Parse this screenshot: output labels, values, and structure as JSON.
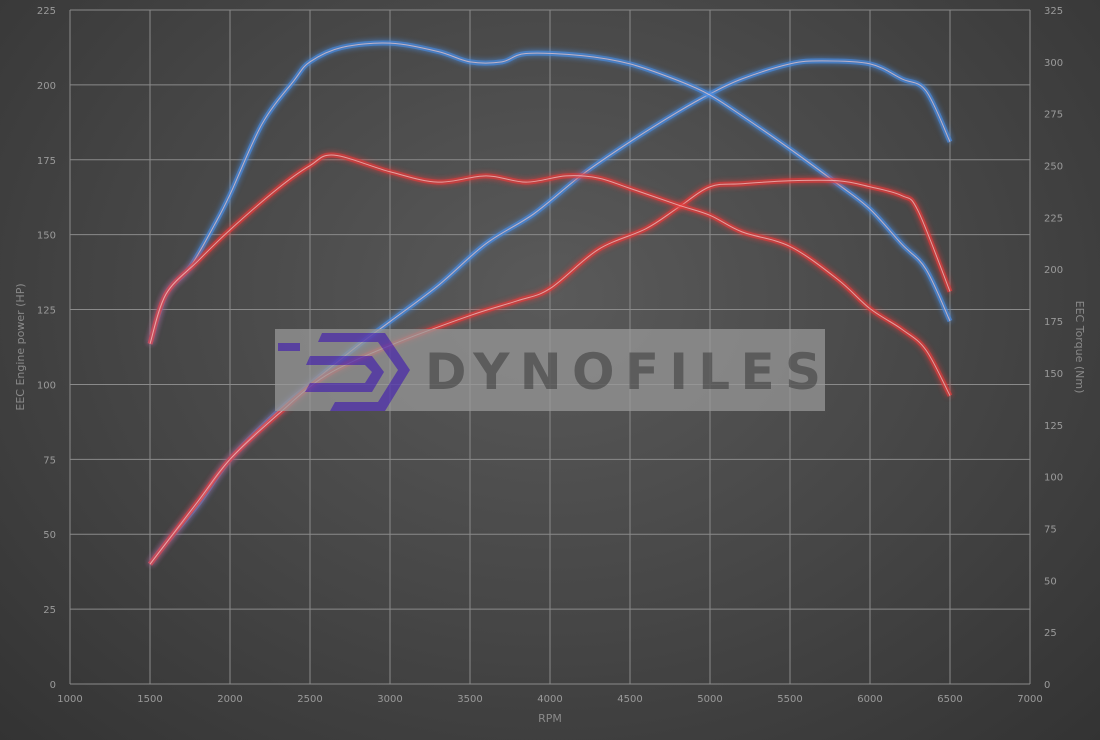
{
  "chart_data": {
    "type": "line",
    "xlabel": "RPM",
    "ylabel_left": "EEC Engine power (HP)",
    "ylabel_right": "EEC Torque (Nm)",
    "xlim": [
      1000,
      7000
    ],
    "ylim_left": [
      0,
      225
    ],
    "ylim_right": [
      0,
      325
    ],
    "x_ticks": [
      1000,
      1500,
      2000,
      2500,
      3000,
      3500,
      4000,
      4500,
      5000,
      5500,
      6000,
      6500,
      7000
    ],
    "y_ticks_left": [
      0,
      25,
      50,
      75,
      100,
      125,
      150,
      175,
      200,
      225
    ],
    "y_ticks_right": [
      0,
      25,
      50,
      75,
      100,
      125,
      150,
      175,
      200,
      225,
      250,
      275,
      300,
      325
    ],
    "grid": true,
    "watermark": "DYNOFILES",
    "series": [
      {
        "color": "#4a8fe8",
        "axis": "left",
        "points": [
          [
            1500,
            40
          ],
          [
            1600,
            47
          ],
          [
            1800,
            60
          ],
          [
            2000,
            75
          ],
          [
            2300,
            91
          ],
          [
            2500,
            100
          ],
          [
            2800,
            113
          ],
          [
            3000,
            121
          ],
          [
            3300,
            133
          ],
          [
            3600,
            147
          ],
          [
            3900,
            157
          ],
          [
            4200,
            170
          ],
          [
            4500,
            181
          ],
          [
            4800,
            191
          ],
          [
            5000,
            197
          ],
          [
            5200,
            202
          ],
          [
            5500,
            207
          ],
          [
            5700,
            208
          ],
          [
            6000,
            207
          ],
          [
            6200,
            202
          ],
          [
            6350,
            198
          ],
          [
            6500,
            181
          ]
        ]
      },
      {
        "color": "#4a8fe8",
        "axis": "right",
        "points": [
          [
            1500,
            164
          ],
          [
            1600,
            188
          ],
          [
            1750,
            201
          ],
          [
            1900,
            221
          ],
          [
            2000,
            236
          ],
          [
            2200,
            270
          ],
          [
            2400,
            291
          ],
          [
            2500,
            300
          ],
          [
            2700,
            307
          ],
          [
            3000,
            309
          ],
          [
            3300,
            305
          ],
          [
            3500,
            300
          ],
          [
            3700,
            300
          ],
          [
            3850,
            304
          ],
          [
            4200,
            303
          ],
          [
            4500,
            299
          ],
          [
            4800,
            291
          ],
          [
            5000,
            284
          ],
          [
            5200,
            274
          ],
          [
            5500,
            258
          ],
          [
            5800,
            241
          ],
          [
            6000,
            229
          ],
          [
            6200,
            212
          ],
          [
            6350,
            200
          ],
          [
            6500,
            175
          ]
        ]
      },
      {
        "color": "#e83a3a",
        "axis": "left",
        "points": [
          [
            1500,
            40
          ],
          [
            1800,
            61
          ],
          [
            2000,
            75
          ],
          [
            2300,
            90
          ],
          [
            2600,
            103
          ],
          [
            3000,
            113
          ],
          [
            3500,
            123
          ],
          [
            3800,
            128
          ],
          [
            4000,
            132
          ],
          [
            4300,
            145
          ],
          [
            4600,
            152
          ],
          [
            4800,
            159
          ],
          [
            5000,
            166
          ],
          [
            5200,
            167
          ],
          [
            5500,
            168
          ],
          [
            5800,
            168
          ],
          [
            6000,
            166
          ],
          [
            6200,
            163
          ],
          [
            6300,
            158
          ],
          [
            6500,
            131
          ]
        ]
      },
      {
        "color": "#e83a3a",
        "axis": "right",
        "points": [
          [
            1500,
            164
          ],
          [
            1600,
            188
          ],
          [
            1800,
            204
          ],
          [
            2000,
            219
          ],
          [
            2300,
            239
          ],
          [
            2500,
            250
          ],
          [
            2650,
            255
          ],
          [
            3000,
            247
          ],
          [
            3300,
            242
          ],
          [
            3600,
            245
          ],
          [
            3850,
            242
          ],
          [
            4100,
            245
          ],
          [
            4300,
            244
          ],
          [
            4500,
            239
          ],
          [
            4800,
            231
          ],
          [
            5000,
            226
          ],
          [
            5200,
            218
          ],
          [
            5500,
            211
          ],
          [
            5800,
            195
          ],
          [
            6000,
            181
          ],
          [
            6200,
            171
          ],
          [
            6350,
            161
          ],
          [
            6500,
            139
          ]
        ]
      }
    ]
  }
}
